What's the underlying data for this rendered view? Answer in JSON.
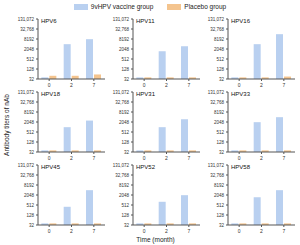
{
  "axis_labels": {
    "x": "Time (month)",
    "y": "Antibody titers of nAb"
  },
  "legend": "top",
  "chart_data": [
    {
      "type": "bar",
      "title": "HPV6",
      "log": "y",
      "categories": [
        "0",
        "2",
        "7"
      ],
      "ylim": [
        32,
        131072
      ],
      "yticks": [
        32,
        128,
        512,
        2048,
        8192,
        {
          "value": 32768,
          "label": "32,768"
        },
        {
          "value": 131072,
          "label": "131,072"
        }
      ],
      "series": [
        {
          "name": "9vHPV vaccine group",
          "color": "#b9d0f0",
          "values": [
            40,
            4000,
            8000
          ]
        },
        {
          "name": "Placebo group",
          "color": "#f4c48e",
          "values": [
            50,
            50,
            60
          ]
        }
      ]
    },
    {
      "type": "bar",
      "title": "HPV11",
      "log": "y",
      "categories": [
        "0",
        "2",
        "7"
      ],
      "ylim": [
        32,
        131072
      ],
      "yticks": [
        32,
        128,
        512,
        2048,
        8192,
        {
          "value": 32768,
          "label": "32,768"
        },
        {
          "value": 131072,
          "label": "131,072"
        }
      ],
      "series": [
        {
          "name": "9vHPV vaccine group",
          "color": "#b9d0f0",
          "values": [
            40,
            1500,
            3000
          ]
        },
        {
          "name": "Placebo group",
          "color": "#f4c48e",
          "values": [
            40,
            40,
            40
          ]
        }
      ]
    },
    {
      "type": "bar",
      "title": "HPV16",
      "log": "y",
      "categories": [
        "0",
        "2",
        "7"
      ],
      "ylim": [
        32,
        131072
      ],
      "yticks": [
        32,
        128,
        512,
        2048,
        8192,
        {
          "value": 32768,
          "label": "32,768"
        },
        {
          "value": 131072,
          "label": "131,072"
        }
      ],
      "series": [
        {
          "name": "9vHPV vaccine group",
          "color": "#b9d0f0",
          "values": [
            40,
            4000,
            16000
          ]
        },
        {
          "name": "Placebo group",
          "color": "#f4c48e",
          "values": [
            40,
            40,
            45
          ]
        }
      ]
    },
    {
      "type": "bar",
      "title": "HPV18",
      "log": "y",
      "categories": [
        "0",
        "2",
        "7"
      ],
      "ylim": [
        32,
        131072
      ],
      "yticks": [
        32,
        128,
        512,
        2048,
        8192,
        {
          "value": 32768,
          "label": "32,768"
        },
        {
          "value": 131072,
          "label": "131,072"
        }
      ],
      "series": [
        {
          "name": "9vHPV vaccine group",
          "color": "#b9d0f0",
          "values": [
            40,
            1000,
            2500
          ]
        },
        {
          "name": "Placebo group",
          "color": "#f4c48e",
          "values": [
            40,
            40,
            40
          ]
        }
      ]
    },
    {
      "type": "bar",
      "title": "HPV31",
      "log": "y",
      "categories": [
        "0",
        "2",
        "7"
      ],
      "ylim": [
        32,
        131072
      ],
      "yticks": [
        32,
        128,
        512,
        2048,
        8192,
        {
          "value": 32768,
          "label": "32,768"
        },
        {
          "value": 131072,
          "label": "131,072"
        }
      ],
      "series": [
        {
          "name": "9vHPV vaccine group",
          "color": "#b9d0f0",
          "values": [
            40,
            1000,
            3000
          ]
        },
        {
          "name": "Placebo group",
          "color": "#f4c48e",
          "values": [
            40,
            40,
            40
          ]
        }
      ]
    },
    {
      "type": "bar",
      "title": "HPV33",
      "log": "y",
      "categories": [
        "0",
        "2",
        "7"
      ],
      "ylim": [
        32,
        131072
      ],
      "yticks": [
        32,
        128,
        512,
        2048,
        8192,
        {
          "value": 32768,
          "label": "32,768"
        },
        {
          "value": 131072,
          "label": "131,072"
        }
      ],
      "series": [
        {
          "name": "9vHPV vaccine group",
          "color": "#b9d0f0",
          "values": [
            40,
            2000,
            4000
          ]
        },
        {
          "name": "Placebo group",
          "color": "#f4c48e",
          "values": [
            40,
            40,
            40
          ]
        }
      ]
    },
    {
      "type": "bar",
      "title": "HPV45",
      "log": "y",
      "categories": [
        "0",
        "2",
        "7"
      ],
      "ylim": [
        32,
        131072
      ],
      "yticks": [
        32,
        128,
        512,
        2048,
        8192,
        {
          "value": 32768,
          "label": "32,768"
        },
        {
          "value": 131072,
          "label": "131,072"
        }
      ],
      "series": [
        {
          "name": "9vHPV vaccine group",
          "color": "#b9d0f0",
          "values": [
            40,
            400,
            4000
          ]
        },
        {
          "name": "Placebo group",
          "color": "#f4c48e",
          "values": [
            40,
            40,
            40
          ]
        }
      ]
    },
    {
      "type": "bar",
      "title": "HPV52",
      "log": "y",
      "categories": [
        "0",
        "2",
        "7"
      ],
      "ylim": [
        32,
        131072
      ],
      "yticks": [
        32,
        128,
        512,
        2048,
        8192,
        {
          "value": 32768,
          "label": "32,768"
        },
        {
          "value": 131072,
          "label": "131,072"
        }
      ],
      "series": [
        {
          "name": "9vHPV vaccine group",
          "color": "#b9d0f0",
          "values": [
            40,
            800,
            2000
          ]
        },
        {
          "name": "Placebo group",
          "color": "#f4c48e",
          "values": [
            40,
            40,
            40
          ]
        }
      ]
    },
    {
      "type": "bar",
      "title": "HPV58",
      "log": "y",
      "categories": [
        "0",
        "2",
        "7"
      ],
      "ylim": [
        32,
        131072
      ],
      "yticks": [
        32,
        128,
        512,
        2048,
        8192,
        {
          "value": 32768,
          "label": "32,768"
        },
        {
          "value": 131072,
          "label": "131,072"
        }
      ],
      "series": [
        {
          "name": "9vHPV vaccine group",
          "color": "#b9d0f0",
          "values": [
            40,
            1500,
            4000
          ]
        },
        {
          "name": "Placebo group",
          "color": "#f4c48e",
          "values": [
            40,
            40,
            40
          ]
        }
      ]
    }
  ]
}
